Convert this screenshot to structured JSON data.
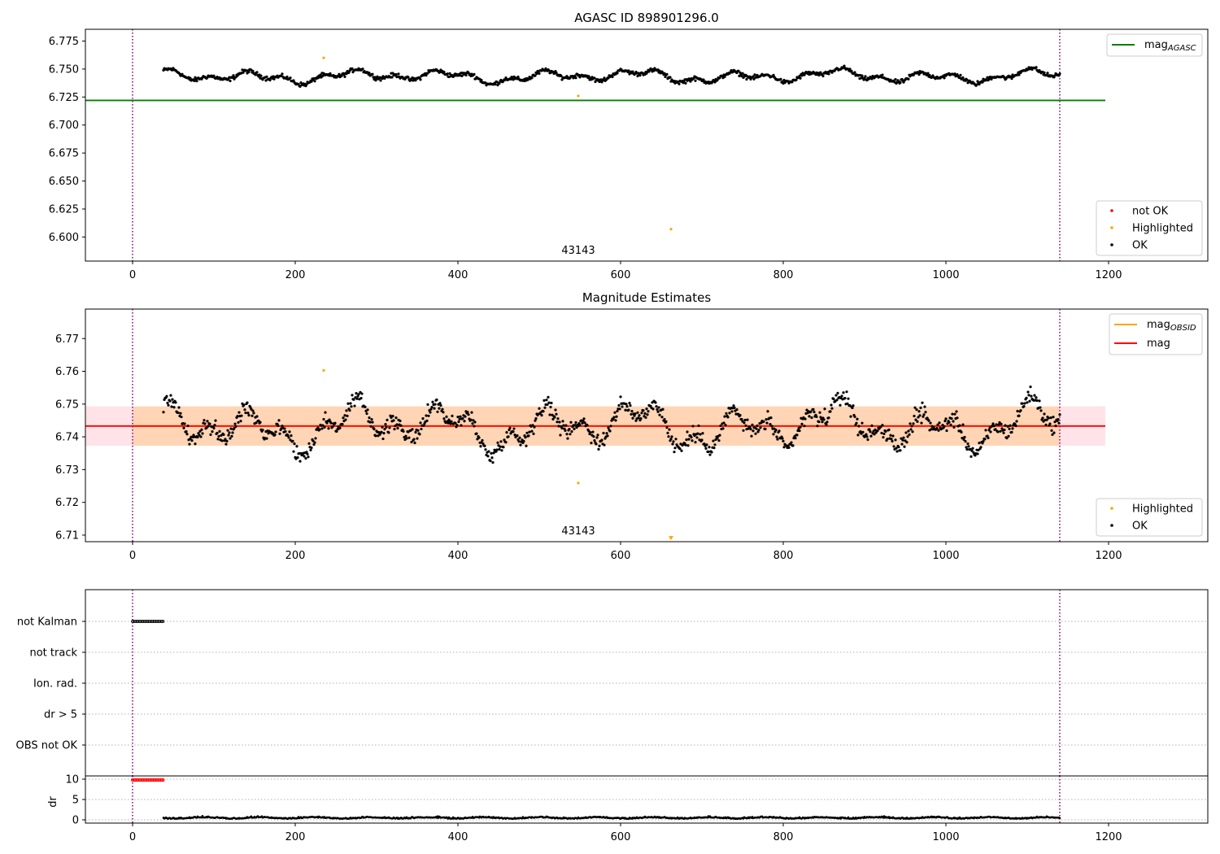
{
  "chart_data": [
    {
      "type": "scatter",
      "title": "AGASC ID 898901296.0",
      "xlim": [
        -58,
        1322
      ],
      "ylim": [
        6.5785,
        6.7855
      ],
      "xticks": [
        0,
        200,
        400,
        600,
        800,
        1000,
        1200
      ],
      "yticks": [
        6.6,
        6.625,
        6.65,
        6.675,
        6.7,
        6.725,
        6.75,
        6.775
      ],
      "ytick_labels": [
        "6.600",
        "6.625",
        "6.650",
        "6.675",
        "6.700",
        "6.725",
        "6.750",
        "6.775"
      ],
      "vlines": [
        0,
        1140
      ],
      "vline_color": "#800080",
      "hline": {
        "name": "mag",
        "subscript": "AGASC",
        "y": 6.722,
        "x": [
          -58,
          1196
        ],
        "color": "#008000"
      },
      "annotation": {
        "text": "43143",
        "x": 548
      },
      "series": [
        {
          "name": "not OK",
          "color": "#ff0000",
          "points": []
        },
        {
          "name": "Highlighted",
          "color": "#ffa500",
          "points": [
            [
              235,
              6.76
            ],
            [
              548,
              6.726
            ],
            [
              662,
              6.607
            ]
          ]
        },
        {
          "name": "OK",
          "color": "#000000",
          "x_range": [
            38,
            1140
          ],
          "mean": 6.7435,
          "amplitude": 0.007
        }
      ],
      "legends": [
        {
          "position": "upper right",
          "items": [
            {
              "label": "mag",
              "sub": "AGASC",
              "kind": "line",
              "color": "#008000"
            }
          ]
        },
        {
          "position": "lower right",
          "items": [
            {
              "label": "not OK",
              "kind": "dot",
              "color": "#ff0000"
            },
            {
              "label": "Highlighted",
              "kind": "dot",
              "color": "#ffa500"
            },
            {
              "label": "OK",
              "kind": "dot",
              "color": "#000000"
            }
          ]
        }
      ]
    },
    {
      "type": "scatter",
      "title": "Magnitude Estimates",
      "xlim": [
        -58,
        1322
      ],
      "ylim": [
        6.708,
        6.779
      ],
      "xticks": [
        0,
        200,
        400,
        600,
        800,
        1000,
        1200
      ],
      "yticks": [
        6.71,
        6.72,
        6.73,
        6.74,
        6.75,
        6.76,
        6.77
      ],
      "ytick_labels": [
        "6.71",
        "6.72",
        "6.73",
        "6.74",
        "6.75",
        "6.76",
        "6.77"
      ],
      "vlines": [
        0,
        1140
      ],
      "vline_color": "#800080",
      "bands": [
        {
          "y": [
            6.7373,
            6.7493
          ],
          "x": [
            -58,
            1196
          ],
          "color": "#ffc0cb",
          "opacity": 0.45
        },
        {
          "y": [
            6.7373,
            6.7493
          ],
          "x": [
            0,
            1140
          ],
          "color": "#ffa500",
          "opacity": 0.22
        }
      ],
      "hlines": [
        {
          "name": "mag",
          "subscript": "OBSID",
          "y": 6.7433,
          "x": [
            0,
            1140
          ],
          "color": "#ffa500"
        },
        {
          "name": "mag",
          "y": 6.7433,
          "x": [
            -58,
            1196
          ],
          "color": "#ff0000"
        }
      ],
      "annotation": {
        "text": "43143",
        "x": 548
      },
      "series": [
        {
          "name": "Highlighted",
          "color": "#ffa500",
          "points": [
            [
              235,
              6.7603
            ],
            [
              548,
              6.7259
            ]
          ]
        },
        {
          "name": "Highlighted",
          "color": "#ffa500",
          "marker": "down-triangle",
          "points": [
            [
              662,
              6.7092
            ]
          ]
        },
        {
          "name": "OK",
          "color": "#000000",
          "x_range": [
            38,
            1140
          ],
          "mean": 6.7433,
          "amplitude": 0.007
        }
      ],
      "legends": [
        {
          "position": "upper right",
          "items": [
            {
              "label": "mag",
              "sub": "OBSID",
              "kind": "line",
              "color": "#ffa500"
            },
            {
              "label": "mag",
              "kind": "line",
              "color": "#ff0000"
            }
          ]
        },
        {
          "position": "lower right",
          "items": [
            {
              "label": "Highlighted",
              "kind": "dot",
              "color": "#ffa500"
            },
            {
              "label": "OK",
              "kind": "dot",
              "color": "#000000"
            }
          ]
        }
      ]
    },
    {
      "type": "scatter",
      "title": "",
      "xlim": [
        -58,
        1322
      ],
      "categories": [
        "not Kalman",
        "not track",
        "Ion. rad.",
        "dr > 5",
        "OBS not OK"
      ],
      "series": [
        {
          "name": "not Kalman",
          "x_range": [
            0,
            38
          ],
          "color": "#000000"
        }
      ],
      "vlines": [
        0,
        1140
      ],
      "vline_color": "#800080"
    },
    {
      "type": "scatter",
      "ylabel": "dr",
      "xlim": [
        -58,
        1322
      ],
      "ylim": [
        -0.8,
        10.8
      ],
      "xticks": [
        0,
        200,
        400,
        600,
        800,
        1000,
        1200
      ],
      "yticks": [
        0,
        5,
        10
      ],
      "vlines": [
        0,
        1140
      ],
      "vline_color": "#800080",
      "series": [
        {
          "name": "dr > 5",
          "color": "#ff0000",
          "x_range": [
            0,
            38
          ],
          "value": 9.8
        },
        {
          "name": "dr",
          "color": "#000000",
          "x_range": [
            38,
            1140
          ],
          "value": 0.4
        }
      ]
    }
  ]
}
